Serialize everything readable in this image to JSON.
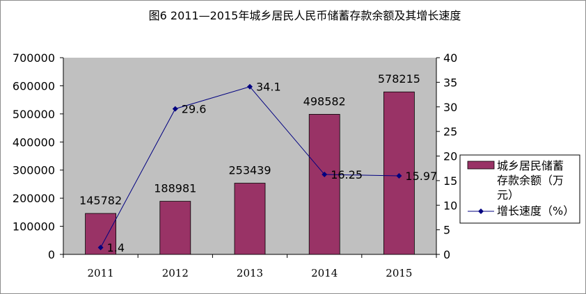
{
  "chart_data": {
    "type": "bar+line",
    "title": "图6 2011—2015年城乡居民人民币储蓄存款余额及其增长速度",
    "categories": [
      "2011",
      "2012",
      "2013",
      "2014",
      "2015"
    ],
    "series": [
      {
        "name": "城乡居民储蓄存款余额（万元）",
        "type": "bar",
        "axis": "left",
        "values": [
          145782,
          188981,
          253439,
          498582,
          578215
        ],
        "labels": [
          "145782",
          "188981",
          "253439",
          "498582",
          "578215"
        ],
        "color": "#993366"
      },
      {
        "name": "增长速度（%）",
        "type": "line",
        "axis": "right",
        "values": [
          1.4,
          29.6,
          34.1,
          16.25,
          15.97
        ],
        "labels": [
          "1.4",
          "29.6",
          "34.1",
          "16.25",
          "15.97"
        ],
        "color": "#000080"
      }
    ],
    "y_left": {
      "min": 0,
      "max": 700000,
      "step": 100000,
      "ticks": [
        "0",
        "100000",
        "200000",
        "300000",
        "400000",
        "500000",
        "600000",
        "700000"
      ]
    },
    "y_right": {
      "min": 0,
      "max": 40,
      "step": 5,
      "ticks": [
        "0",
        "5",
        "10",
        "15",
        "20",
        "25",
        "30",
        "35",
        "40"
      ]
    },
    "legend": {
      "position": "right",
      "bar_label_lines": [
        "城乡居民储蓄",
        "存款余额（万",
        "元）"
      ],
      "line_label": "增长速度（%）"
    },
    "plot_background": "#c0c0c0",
    "grid": false
  }
}
